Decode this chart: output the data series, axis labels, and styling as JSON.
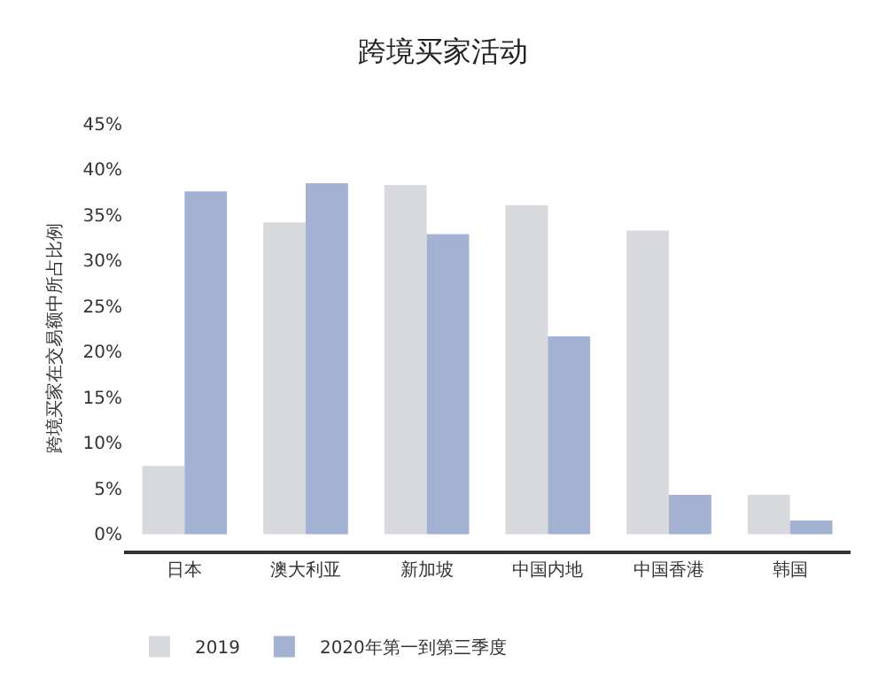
{
  "chart_data": {
    "type": "bar",
    "title": "跨境买家活动",
    "ylabel": "跨境买家在交易额中所占比例",
    "categories": [
      "日本",
      "澳大利亚",
      "新加坡",
      "中国内地",
      "中国香港",
      "韩国"
    ],
    "series": [
      {
        "name": "2019",
        "color": "#d8d9dc",
        "values": [
          7.5,
          34.2,
          38.3,
          36.1,
          33.3,
          4.3
        ]
      },
      {
        "name": "2020年第一到第三季度",
        "color": "#a3b1d3",
        "values": [
          37.6,
          38.5,
          32.9,
          21.7,
          4.3,
          1.5
        ]
      }
    ],
    "ylim": [
      -2,
      45
    ],
    "yticks": [
      {
        "value": 0,
        "label": "0%"
      },
      {
        "value": 5,
        "label": "5%"
      },
      {
        "value": 10,
        "label": "10%"
      },
      {
        "value": 15,
        "label": "15%"
      },
      {
        "value": 20,
        "label": "20%"
      },
      {
        "value": 25,
        "label": "25%"
      },
      {
        "value": 30,
        "label": "30%"
      },
      {
        "value": 35,
        "label": "35%"
      },
      {
        "value": 40,
        "label": "40%"
      },
      {
        "value": 45,
        "label": "45%"
      }
    ],
    "grid": false,
    "legend": "bottom left"
  }
}
